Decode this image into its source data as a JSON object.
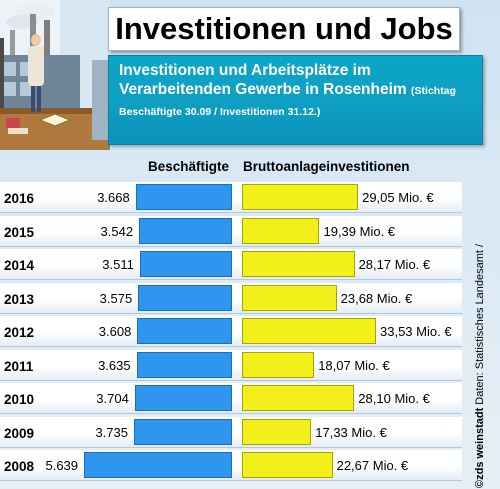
{
  "title": "Investitionen und Jobs",
  "subtitle_main": "Investitionen und Arbeitsplätze im Verarbeitenden Gewerbe in Rosenheim",
  "subtitle_note": "(Stichtag Beschäftigte 30.09 / Investitionen 31.12.)",
  "credit_brand": "©zds weinstadt",
  "credit_source": "Daten: Statistisches Landesamt /",
  "colors": {
    "employees_bar": "#2f96ef",
    "investment_bar": "#f2ef1a",
    "subtitle_bg": "#0aa6c7"
  },
  "chart_data": {
    "type": "bar",
    "title": "Investitionen und Jobs",
    "categories": [
      "2016",
      "2015",
      "2014",
      "2013",
      "2012",
      "2011",
      "2010",
      "2009",
      "2008"
    ],
    "series": [
      {
        "name": "Beschäftigte",
        "values": [
          3668,
          3542,
          3511,
          3575,
          3608,
          3635,
          3704,
          3735,
          5639
        ],
        "labels": [
          "3.668",
          "3.542",
          "3.511",
          "3.575",
          "3.608",
          "3.635",
          "3.704",
          "3.735",
          "5.639"
        ]
      },
      {
        "name": "Bruttoanlageinvestitionen",
        "unit": "Mio. €",
        "values": [
          29.05,
          19.39,
          28.17,
          23.68,
          33.53,
          18.07,
          28.1,
          17.33,
          22.67
        ],
        "labels": [
          "29,05 Mio. €",
          "19,39 Mio. €",
          "28,17 Mio. €",
          "23,68 Mio. €",
          "33,53 Mio. €",
          "18,07 Mio. €",
          "28,10 Mio. €",
          "17,33 Mio. €",
          "22,67 Mio. €"
        ]
      }
    ],
    "orientation": "horizontal",
    "grid": false,
    "legend": "column headers"
  }
}
